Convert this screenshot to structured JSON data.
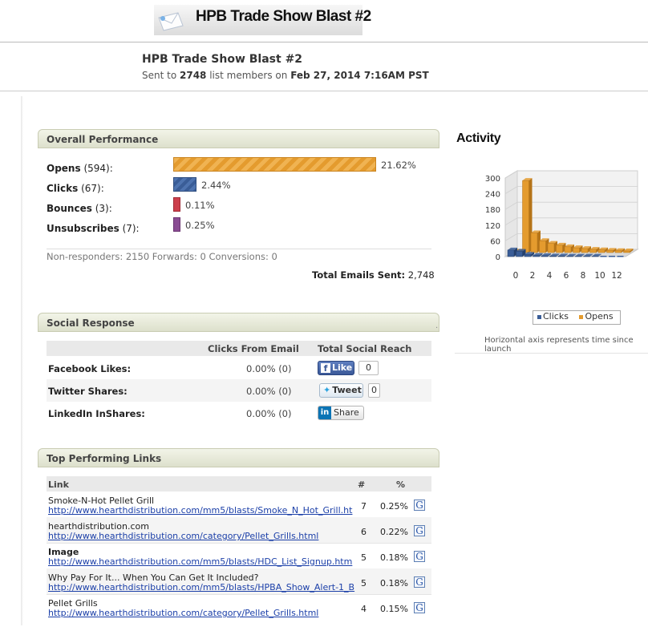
{
  "header": {
    "banner_title": "HPB Trade Show Blast #2",
    "subtitle": "HPB Trade Show Blast #2",
    "sent_prefix": "Sent to ",
    "sent_count": "2748",
    "sent_mid": " list members on ",
    "sent_date": "Feb 27, 2014 7:16AM PST"
  },
  "overall": {
    "heading": "Overall Performance",
    "rows": [
      {
        "label": "Opens",
        "count": "(594):",
        "pct": "21.62%",
        "value": 21.62
      },
      {
        "label": "Clicks",
        "count": "(67):",
        "pct": "2.44%",
        "value": 2.44
      },
      {
        "label": "Bounces",
        "count": "(3):",
        "pct": "0.11%",
        "value": 0.11
      },
      {
        "label": "Unsubscribes",
        "count": "(7):",
        "pct": "0.25%",
        "value": 0.25
      }
    ],
    "nonresponders": "Non-responders: 2150 Forwards: 0 Conversions: 0",
    "total_label": "Total Emails Sent:",
    "total_value": "2,748"
  },
  "social": {
    "heading": "Social Response",
    "col_clicks": "Clicks From Email",
    "col_reach": "Total Social Reach",
    "rows": [
      {
        "label": "Facebook Likes:",
        "value": "0.00% (0)",
        "button": "Like",
        "count": "0"
      },
      {
        "label": "Twitter Shares:",
        "value": "0.00% (0)",
        "button": "Tweet",
        "count": "0"
      },
      {
        "label": "LinkedIn InShares:",
        "value": "0.00% (0)",
        "button": "Share"
      }
    ]
  },
  "links": {
    "heading": "Top Performing Links",
    "col_link": "Link",
    "col_count": "#",
    "col_pct": "%",
    "rows": [
      {
        "title": "Smoke-N-Hot Pellet Grill",
        "url": "http://www.hearthdistribution.com/mm5/blasts/Smoke_N_Hot_Grill.ht",
        "count": "7",
        "pct": "0.25%"
      },
      {
        "title": "hearthdistribution.com",
        "url": "http://www.hearthdistribution.com/category/Pellet_Grills.html",
        "count": "6",
        "pct": "0.22%"
      },
      {
        "title": "Image",
        "url": "http://www.hearthdistribution.com/mm5/blasts/HDC_List_Signup.htm",
        "count": "5",
        "pct": "0.18%"
      },
      {
        "title": "Why Pay For It... When You Can Get It Included?",
        "url": "http://www.hearthdistribution.com/mm5/blasts/HPBA_Show_Alert-1_B",
        "count": "5",
        "pct": "0.18%"
      },
      {
        "title": "Pellet Grills",
        "url": "http://www.hearthdistribution.com/category/Pellet_Grills.html",
        "count": "4",
        "pct": "0.15%"
      }
    ]
  },
  "activity": {
    "title": "Activity",
    "axis_note": "Horizontal axis represents time since launch",
    "chart_data": {
      "type": "bar",
      "x": [
        0,
        1,
        2,
        3,
        4,
        5,
        6,
        7,
        8,
        9,
        10,
        11,
        12,
        13
      ],
      "x_tick_labels": [
        "0",
        "2",
        "4",
        "6",
        "8",
        "10",
        "12"
      ],
      "y_tick_labels": [
        "0",
        "60",
        "120",
        "180",
        "240",
        "300"
      ],
      "ylim": [
        0,
        300
      ],
      "legend": "bottom",
      "series": [
        {
          "name": "Clicks",
          "color": "#3a5d97",
          "values": [
            25,
            20,
            8,
            4,
            3,
            2,
            2,
            1,
            1,
            1,
            1,
            0,
            0,
            0
          ]
        },
        {
          "name": "Opens",
          "color": "#e49b2e",
          "values": [
            5,
            275,
            75,
            45,
            35,
            28,
            22,
            18,
            15,
            12,
            10,
            8,
            7,
            6
          ]
        }
      ]
    }
  }
}
